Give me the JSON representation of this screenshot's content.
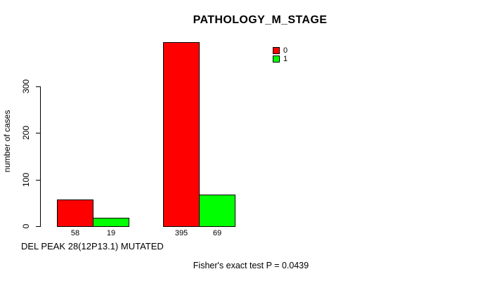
{
  "chart_data": {
    "type": "bar",
    "title": "PATHOLOGY_M_STAGE",
    "ylabel": "number of cases",
    "xlabel": "DEL PEAK 28(12P13.1) MUTATED",
    "annotation": "Fisher's exact test P = 0.0439",
    "y_ticks": [
      0,
      100,
      200,
      300
    ],
    "ylim": [
      0,
      400
    ],
    "grid": false,
    "legend_position": "top-right",
    "bar_border_color": "#000000",
    "background_color": "#FFFFFF",
    "series": [
      {
        "name": "0",
        "color": "#FF0000",
        "values": [
          58,
          395
        ]
      },
      {
        "name": "1",
        "color": "#00FF00",
        "values": [
          19,
          69
        ]
      }
    ]
  }
}
